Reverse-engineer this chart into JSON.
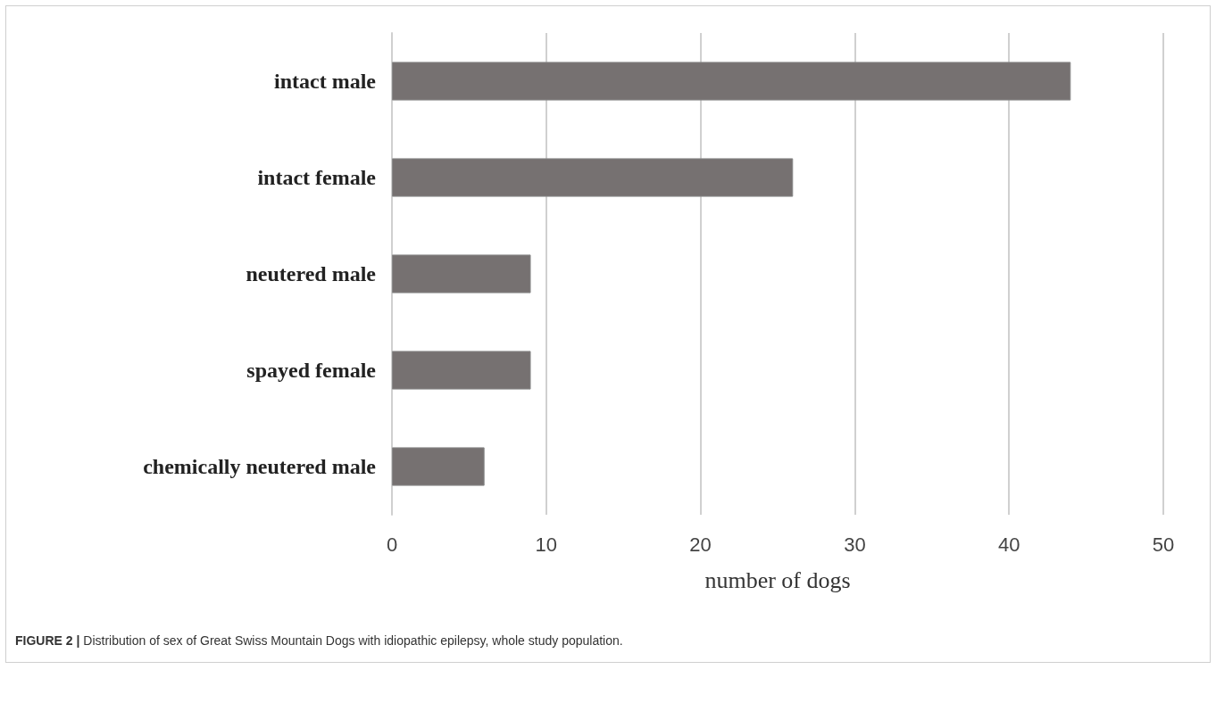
{
  "chart_data": {
    "type": "bar",
    "orientation": "horizontal",
    "categories": [
      "intact male",
      "intact female",
      "neutered male",
      "spayed female",
      "chemically neutered male"
    ],
    "values": [
      44,
      26,
      9,
      9,
      6
    ],
    "color": "#767171",
    "xlim": [
      0,
      50
    ],
    "xticks": [
      0,
      10,
      20,
      30,
      40,
      50
    ],
    "xlabel": "number of dogs",
    "grid": "x",
    "annotations": [
      "FIGURE 2 | Distribution of sex of Great Swiss Mountain Dogs with idiopathic epilepsy, whole study population."
    ]
  }
}
